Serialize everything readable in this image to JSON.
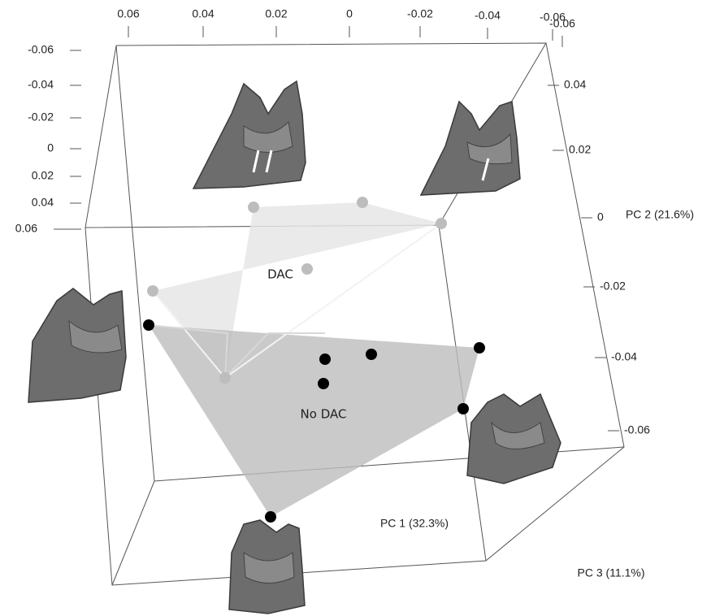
{
  "axes": {
    "top": {
      "ticks": [
        "0.06",
        "0.04",
        "0.02",
        "0",
        "-0.02",
        "-0.04",
        "-0.06",
        "-0.06"
      ]
    },
    "left": {
      "ticks": [
        "-0.06",
        "-0.04",
        "-0.02",
        "0",
        "0.02",
        "0.04",
        "0.06"
      ]
    },
    "right": {
      "ticks": [
        "0.04",
        "0.02",
        "0",
        "-0.02",
        "-0.04",
        "-0.06"
      ]
    }
  },
  "labels": {
    "pc1": "PC 1 (32.3%)",
    "pc2": "PC 2 (21.6%)",
    "pc3": "PC 3 (11.1%)"
  },
  "groups": {
    "dac": "DAC",
    "no_dac": "No DAC"
  }
}
